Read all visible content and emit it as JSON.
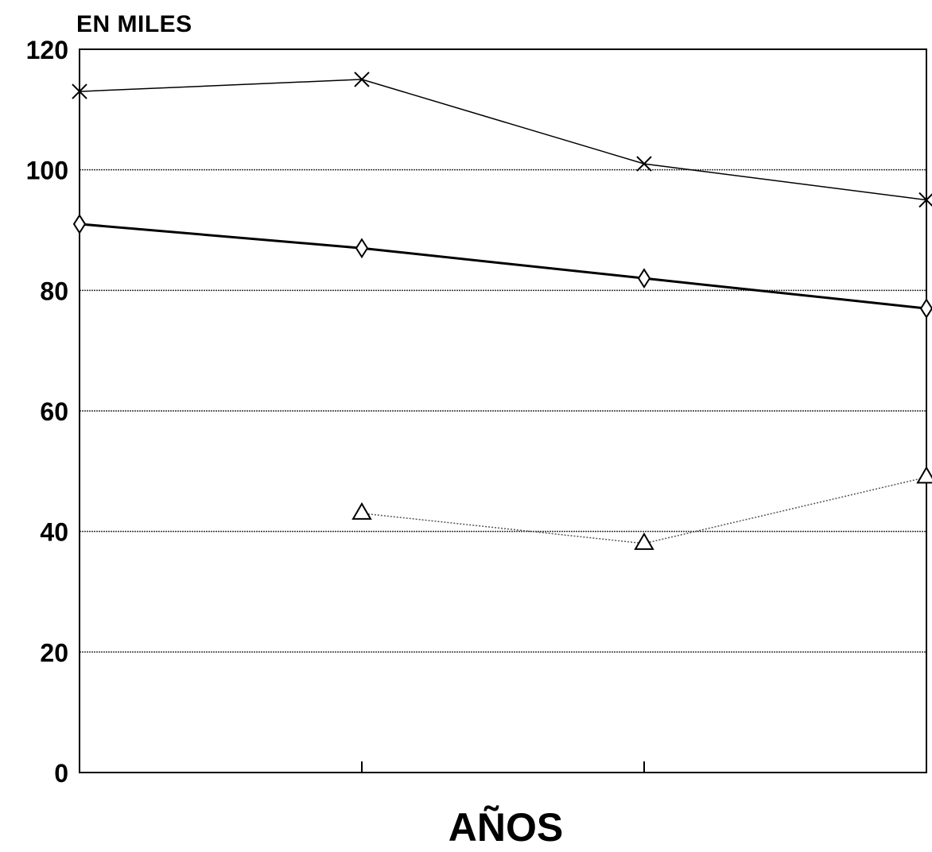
{
  "chart_data": {
    "type": "line",
    "ylabel": "EN MILES",
    "xlabel": "AÑOS",
    "ylim": [
      0,
      120
    ],
    "yticks": [
      0,
      20,
      40,
      60,
      80,
      100,
      120
    ],
    "x": [
      0,
      1,
      2,
      3
    ],
    "xlim": [
      0,
      3
    ],
    "grid": true,
    "series": [
      {
        "marker": "x",
        "values": [
          113,
          115,
          101,
          95
        ],
        "stroke": "#000000",
        "weight": "thin"
      },
      {
        "marker": "diamond",
        "values": [
          91,
          87,
          82,
          77
        ],
        "stroke": "#000000",
        "weight": "thick"
      },
      {
        "marker": "triangle",
        "values": [
          null,
          43,
          38,
          49
        ],
        "stroke": "#555555",
        "weight": "dotted"
      }
    ]
  }
}
